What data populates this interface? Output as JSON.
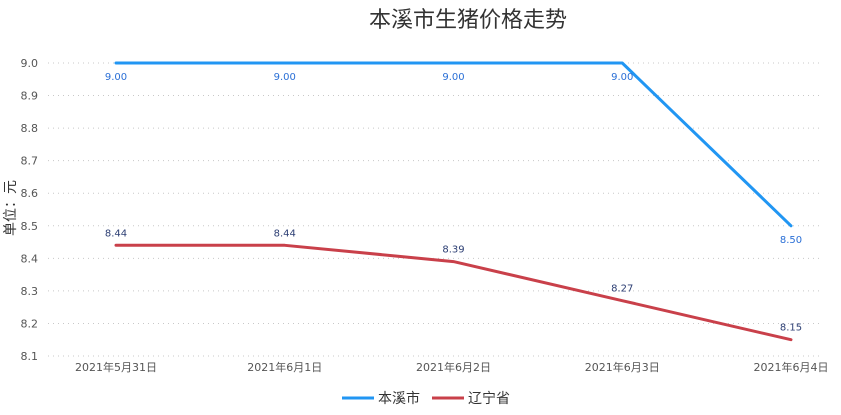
{
  "chart_data": {
    "type": "line",
    "title": "本溪市生猪价格走势",
    "ylabel": "单位：元",
    "xlabel": "",
    "categories": [
      "2021年5月31日",
      "2021年6月1日",
      "2021年6月2日",
      "2021年6月3日",
      "2021年6月4日"
    ],
    "ylim": [
      8.1,
      9.0
    ],
    "yticks": [
      "9.0",
      "8.9",
      "8.8",
      "8.7",
      "8.6",
      "8.5",
      "8.4",
      "8.3",
      "8.2",
      "8.1"
    ],
    "grid": true,
    "legend_position": "bottom",
    "series": [
      {
        "name": "本溪市",
        "color": "#2196f3",
        "values": [
          9.0,
          9.0,
          9.0,
          9.0,
          8.5
        ],
        "labels": [
          "9.00",
          "9.00",
          "9.00",
          "9.00",
          "8.50"
        ]
      },
      {
        "name": "辽宁省",
        "color": "#c9404a",
        "values": [
          8.44,
          8.44,
          8.39,
          8.27,
          8.15
        ],
        "labels": [
          "8.44",
          "8.44",
          "8.39",
          "8.27",
          "8.15"
        ]
      }
    ]
  }
}
